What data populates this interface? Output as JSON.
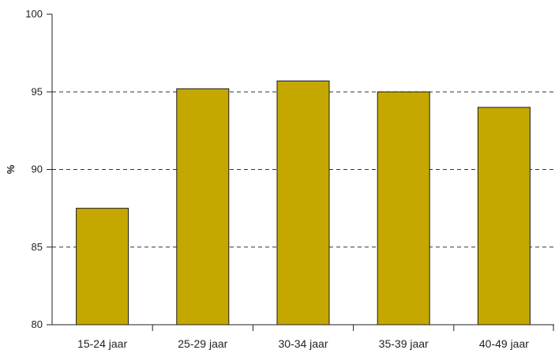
{
  "chart_data": {
    "type": "bar",
    "categories": [
      "15-24 jaar",
      "25-29 jaar",
      "30-34 jaar",
      "35-39 jaar",
      "40-49 jaar"
    ],
    "values": [
      87.5,
      95.2,
      95.7,
      95.0,
      94.0
    ],
    "title": "",
    "xlabel": "",
    "ylabel": "%",
    "ylim": [
      80,
      100
    ],
    "yticks": [
      80,
      85,
      90,
      95,
      100
    ],
    "grid": "horizontal dashed",
    "bar_color": "#C4A800",
    "bar_outline": "#1a1a1a"
  }
}
